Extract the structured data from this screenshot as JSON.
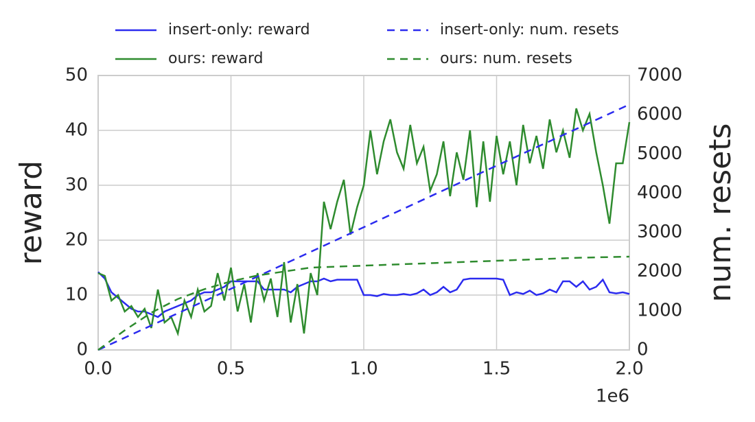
{
  "chart_data": {
    "type": "line",
    "ylabel": "reward",
    "y2label": "num. resets",
    "x_offset_label": "1e6",
    "xlim": [
      0,
      2.0
    ],
    "xticks": [
      {
        "value": 0,
        "label": "0.0"
      },
      0.5,
      {
        "value": 1.0,
        "label": "1.0"
      },
      1.5,
      {
        "value": 2.0,
        "label": "2.0"
      }
    ],
    "ylim": [
      0,
      50
    ],
    "yticks": [
      0,
      10,
      20,
      30,
      40,
      50
    ],
    "y2lim": [
      0,
      7000
    ],
    "y2ticks": [
      0,
      1000,
      2000,
      3000,
      4000,
      5000,
      6000,
      7000
    ],
    "grid": true,
    "legend": "upper center",
    "legend_ncol": 2,
    "series": [
      {
        "name": "insert-only: reward",
        "color": "#2b2bef",
        "linestyle": "solid",
        "x": [
          0,
          0.025,
          0.05,
          0.075,
          0.1,
          0.125,
          0.15,
          0.175,
          0.2,
          0.225,
          0.25,
          0.275,
          0.3,
          0.325,
          0.35,
          0.375,
          0.4,
          0.425,
          0.45,
          0.475,
          0.5,
          0.525,
          0.55,
          0.575,
          0.6,
          0.625,
          0.65,
          0.675,
          0.7,
          0.725,
          0.75,
          0.775,
          0.8,
          0.825,
          0.85,
          0.875,
          0.9,
          0.925,
          0.95,
          0.975,
          1.0,
          1.025,
          1.05,
          1.075,
          1.1,
          1.125,
          1.15,
          1.175,
          1.2,
          1.225,
          1.25,
          1.275,
          1.3,
          1.325,
          1.35,
          1.375,
          1.4,
          1.425,
          1.45,
          1.475,
          1.5,
          1.525,
          1.55,
          1.575,
          1.6,
          1.625,
          1.65,
          1.675,
          1.7,
          1.725,
          1.75,
          1.775,
          1.8,
          1.825,
          1.85,
          1.875,
          1.9,
          1.925,
          1.95,
          1.975,
          2.0
        ],
        "values": [
          14.2,
          13,
          10.5,
          9.5,
          8.5,
          7.5,
          7,
          7,
          6.5,
          6,
          7,
          7.5,
          8,
          8.5,
          9,
          10,
          10.5,
          10.5,
          11,
          11.5,
          12.5,
          12.5,
          12.5,
          12.5,
          12.5,
          11,
          11,
          11,
          11,
          10.5,
          11.5,
          12,
          12.5,
          12.5,
          13,
          12.5,
          12.8,
          12.8,
          12.8,
          12.8,
          10,
          10,
          9.8,
          10.2,
          10,
          10,
          10.2,
          10,
          10.3,
          11,
          10,
          10.5,
          11.5,
          10.5,
          11,
          12.8,
          13,
          13,
          13,
          13,
          13,
          12.8,
          10,
          10.5,
          10.2,
          10.8,
          10,
          10.3,
          11,
          10.5,
          12.5,
          12.5,
          11.5,
          12.5,
          11,
          11.5,
          12.8,
          10.5,
          10.3,
          10.5,
          10.2
        ]
      },
      {
        "name": "ours: reward",
        "color": "#2e8b2e",
        "linestyle": "solid",
        "x": [
          0,
          0.025,
          0.05,
          0.075,
          0.1,
          0.125,
          0.15,
          0.175,
          0.2,
          0.225,
          0.25,
          0.275,
          0.3,
          0.325,
          0.35,
          0.375,
          0.4,
          0.425,
          0.45,
          0.475,
          0.5,
          0.525,
          0.55,
          0.575,
          0.6,
          0.625,
          0.65,
          0.675,
          0.7,
          0.725,
          0.75,
          0.775,
          0.8,
          0.825,
          0.85,
          0.875,
          0.9,
          0.925,
          0.95,
          0.975,
          1.0,
          1.025,
          1.05,
          1.075,
          1.1,
          1.125,
          1.15,
          1.175,
          1.2,
          1.225,
          1.25,
          1.275,
          1.3,
          1.325,
          1.35,
          1.375,
          1.4,
          1.425,
          1.45,
          1.475,
          1.5,
          1.525,
          1.55,
          1.575,
          1.6,
          1.625,
          1.65,
          1.675,
          1.7,
          1.725,
          1.75,
          1.775,
          1.8,
          1.825,
          1.85,
          1.875,
          1.9,
          1.925,
          1.95,
          1.975,
          2.0
        ],
        "values": [
          14,
          13.5,
          9,
          10,
          7,
          8,
          6,
          7.5,
          4,
          11,
          5,
          6,
          3,
          9,
          6,
          11,
          7,
          8,
          14,
          9,
          15,
          7,
          12,
          5,
          14,
          9,
          13,
          6,
          16,
          5,
          12,
          3,
          14,
          10,
          27,
          22,
          27,
          31,
          21,
          26,
          30,
          40,
          32,
          38,
          42,
          36,
          33,
          41,
          34,
          37,
          29,
          32,
          38,
          28,
          36,
          31,
          40,
          26,
          38,
          27,
          39,
          32,
          38,
          30,
          41,
          34,
          39,
          33,
          42,
          36,
          40,
          35,
          44,
          40,
          43,
          36,
          30,
          23,
          34,
          34,
          41.5
        ]
      },
      {
        "name": "insert-only: num. resets",
        "color": "#2b2bef",
        "linestyle": "dashed",
        "axis": "y2",
        "x": [
          0,
          0.5,
          1.0,
          1.5,
          2.0
        ],
        "values": [
          0,
          1560,
          3130,
          4700,
          6260
        ]
      },
      {
        "name": "ours: num. resets",
        "color": "#2e8b2e",
        "linestyle": "dashed",
        "axis": "y2",
        "x": [
          0,
          0.1,
          0.2,
          0.3,
          0.4,
          0.5,
          0.6,
          0.7,
          0.8,
          1.0,
          1.2,
          1.4,
          1.6,
          1.8,
          2.0
        ],
        "values": [
          0,
          500,
          950,
          1300,
          1550,
          1750,
          1900,
          2000,
          2100,
          2150,
          2200,
          2250,
          2300,
          2350,
          2380
        ]
      }
    ]
  }
}
